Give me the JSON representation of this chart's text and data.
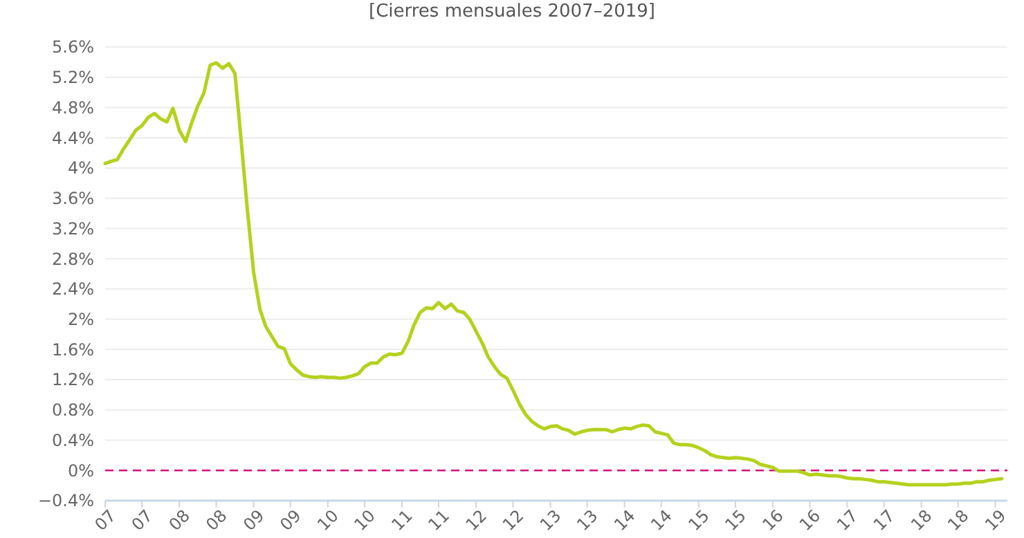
{
  "chart_data": {
    "type": "line",
    "title": "[Cierres mensuales 2007–2019]",
    "x": [
      "2007-01",
      "2007-02",
      "2007-03",
      "2007-04",
      "2007-05",
      "2007-06",
      "2007-07",
      "2007-08",
      "2007-09",
      "2007-10",
      "2007-11",
      "2007-12",
      "2008-01",
      "2008-02",
      "2008-03",
      "2008-04",
      "2008-05",
      "2008-06",
      "2008-07",
      "2008-08",
      "2008-09",
      "2008-10",
      "2008-11",
      "2008-12",
      "2009-01",
      "2009-02",
      "2009-03",
      "2009-04",
      "2009-05",
      "2009-06",
      "2009-07",
      "2009-08",
      "2009-09",
      "2009-10",
      "2009-11",
      "2009-12",
      "2010-01",
      "2010-02",
      "2010-03",
      "2010-04",
      "2010-05",
      "2010-06",
      "2010-07",
      "2010-08",
      "2010-09",
      "2010-10",
      "2010-11",
      "2010-12",
      "2011-01",
      "2011-02",
      "2011-03",
      "2011-04",
      "2011-05",
      "2011-06",
      "2011-07",
      "2011-08",
      "2011-09",
      "2011-10",
      "2011-11",
      "2011-12",
      "2012-01",
      "2012-02",
      "2012-03",
      "2012-04",
      "2012-05",
      "2012-06",
      "2012-07",
      "2012-08",
      "2012-09",
      "2012-10",
      "2012-11",
      "2012-12",
      "2013-01",
      "2013-02",
      "2013-03",
      "2013-04",
      "2013-05",
      "2013-06",
      "2013-07",
      "2013-08",
      "2013-09",
      "2013-10",
      "2013-11",
      "2013-12",
      "2014-01",
      "2014-02",
      "2014-03",
      "2014-04",
      "2014-05",
      "2014-06",
      "2014-07",
      "2014-08",
      "2014-09",
      "2014-10",
      "2014-11",
      "2014-12",
      "2015-01",
      "2015-02",
      "2015-03",
      "2015-04",
      "2015-05",
      "2015-06",
      "2015-07",
      "2015-08",
      "2015-09",
      "2015-10",
      "2015-11",
      "2015-12",
      "2016-01",
      "2016-02",
      "2016-03",
      "2016-04",
      "2016-05",
      "2016-06",
      "2016-07",
      "2016-08",
      "2016-09",
      "2016-10",
      "2016-11",
      "2016-12",
      "2017-01",
      "2017-02",
      "2017-03",
      "2017-04",
      "2017-05",
      "2017-06",
      "2017-07",
      "2017-08",
      "2017-09",
      "2017-10",
      "2017-11",
      "2017-12",
      "2018-01",
      "2018-02",
      "2018-03",
      "2018-04",
      "2018-05",
      "2018-06",
      "2018-07",
      "2018-08",
      "2018-09",
      "2018-10",
      "2018-11",
      "2018-12",
      "2019-01",
      "2019-02"
    ],
    "series": [
      {
        "color": "#b5d11e",
        "values": [
          4.06,
          4.09,
          4.11,
          4.25,
          4.37,
          4.5,
          4.56,
          4.67,
          4.72,
          4.65,
          4.61,
          4.79,
          4.5,
          4.35,
          4.59,
          4.82,
          4.99,
          5.36,
          5.39,
          5.32,
          5.38,
          5.25,
          4.35,
          3.45,
          2.62,
          2.13,
          1.91,
          1.77,
          1.64,
          1.61,
          1.41,
          1.33,
          1.26,
          1.24,
          1.23,
          1.24,
          1.23,
          1.23,
          1.22,
          1.23,
          1.25,
          1.28,
          1.37,
          1.42,
          1.42,
          1.5,
          1.54,
          1.53,
          1.55,
          1.71,
          1.92,
          2.09,
          2.15,
          2.14,
          2.22,
          2.14,
          2.2,
          2.11,
          2.09,
          2.0,
          1.84,
          1.68,
          1.5,
          1.37,
          1.27,
          1.22,
          1.06,
          0.88,
          0.74,
          0.65,
          0.59,
          0.55,
          0.58,
          0.59,
          0.55,
          0.53,
          0.48,
          0.51,
          0.53,
          0.54,
          0.54,
          0.54,
          0.51,
          0.54,
          0.56,
          0.55,
          0.58,
          0.6,
          0.59,
          0.51,
          0.49,
          0.47,
          0.36,
          0.34,
          0.34,
          0.33,
          0.3,
          0.26,
          0.21,
          0.18,
          0.17,
          0.16,
          0.17,
          0.16,
          0.15,
          0.13,
          0.08,
          0.06,
          0.04,
          -0.01,
          -0.01,
          -0.01,
          -0.01,
          -0.03,
          -0.06,
          -0.05,
          -0.06,
          -0.07,
          -0.07,
          -0.08,
          -0.1,
          -0.11,
          -0.11,
          -0.12,
          -0.13,
          -0.15,
          -0.15,
          -0.16,
          -0.17,
          -0.18,
          -0.19,
          -0.19,
          -0.19,
          -0.19,
          -0.19,
          -0.19,
          -0.19,
          -0.18,
          -0.18,
          -0.17,
          -0.17,
          -0.15,
          -0.15,
          -0.13,
          -0.12,
          -0.11
        ]
      }
    ],
    "xlim": [
      "2007-01",
      "2019-03"
    ],
    "xticks": [
      {
        "value": "2007-01",
        "label": "07"
      },
      {
        "value": "2007-07",
        "label": "07"
      },
      {
        "value": "2008-01",
        "label": "08"
      },
      {
        "value": "2008-07",
        "label": "08"
      },
      {
        "value": "2009-01",
        "label": "09"
      },
      {
        "value": "2009-07",
        "label": "09"
      },
      {
        "value": "2010-01",
        "label": "10"
      },
      {
        "value": "2010-07",
        "label": "10"
      },
      {
        "value": "2011-01",
        "label": "11"
      },
      {
        "value": "2011-07",
        "label": "11"
      },
      {
        "value": "2012-01",
        "label": "12"
      },
      {
        "value": "2012-07",
        "label": "12"
      },
      {
        "value": "2013-01",
        "label": "13"
      },
      {
        "value": "2013-07",
        "label": "13"
      },
      {
        "value": "2014-01",
        "label": "14"
      },
      {
        "value": "2014-07",
        "label": "14"
      },
      {
        "value": "2015-01",
        "label": "15"
      },
      {
        "value": "2015-07",
        "label": "15"
      },
      {
        "value": "2016-01",
        "label": "16"
      },
      {
        "value": "2016-07",
        "label": "16"
      },
      {
        "value": "2017-01",
        "label": "17"
      },
      {
        "value": "2017-07",
        "label": "17"
      },
      {
        "value": "2018-01",
        "label": "18"
      },
      {
        "value": "2018-07",
        "label": "18"
      },
      {
        "value": "2019-01",
        "label": "19"
      }
    ],
    "ylim": [
      -0.4,
      5.6
    ],
    "yticks": [
      {
        "value": -0.4,
        "label": "−0.4%"
      },
      {
        "value": 0,
        "label": "0%"
      },
      {
        "value": 0.4,
        "label": "0.4%"
      },
      {
        "value": 0.8,
        "label": "0.8%"
      },
      {
        "value": 1.2,
        "label": "1.2%"
      },
      {
        "value": 1.6,
        "label": "1.6%"
      },
      {
        "value": 2,
        "label": "2%"
      },
      {
        "value": 2.4,
        "label": "2.4%"
      },
      {
        "value": 2.8,
        "label": "2.8%"
      },
      {
        "value": 3.2,
        "label": "3.2%"
      },
      {
        "value": 3.6,
        "label": "3.6%"
      },
      {
        "value": 4,
        "label": "4%"
      },
      {
        "value": 4.4,
        "label": "4.4%"
      },
      {
        "value": 4.8,
        "label": "4.8%"
      },
      {
        "value": 5.2,
        "label": "5.2%"
      },
      {
        "value": 5.6,
        "label": "5.6%"
      }
    ],
    "grid": "y",
    "marker": "none",
    "line_style": "solid",
    "ref_lines": [
      {
        "axis": "y",
        "value": 0,
        "color": "#d4117f",
        "line_style": "dashed"
      }
    ]
  }
}
